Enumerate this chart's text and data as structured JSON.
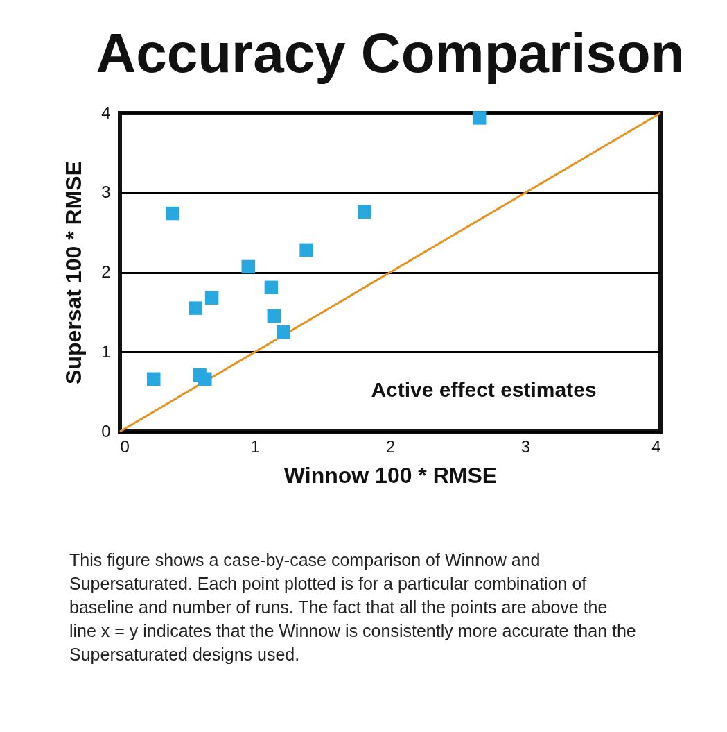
{
  "chart_data": {
    "type": "scatter",
    "title": "Accuracy Comparison",
    "xlabel": "Winnow 100 * RMSE",
    "ylabel": "Supersat 100 * RMSE",
    "annotations": [
      "Active effect estimates",
      "This figure shows a case-by-case comparison of Winnow and Supersaturated. Each point plotted is for a particular combination of baseline and number of runs. The fact that all the points are above the line x = y indicates that the Winnow is consistently more accurate than the Supersaturated designs used."
    ],
    "series": [
      {
        "color": "#29a8e0",
        "marker": "square",
        "x": [
          0.25,
          0.39,
          0.56,
          0.59,
          0.63,
          0.68,
          0.95,
          1.12,
          1.14,
          1.21,
          1.38,
          1.81,
          2.66
        ],
        "values": [
          0.66,
          2.74,
          1.55,
          0.71,
          0.66,
          1.68,
          2.07,
          1.81,
          1.45,
          1.25,
          2.28,
          2.76,
          3.94
        ]
      },
      {
        "type": "line",
        "color": "#e8921e",
        "x": [
          0,
          4
        ],
        "values": [
          0,
          4
        ]
      }
    ],
    "line_style": "solid",
    "xlim": [
      0,
      4
    ],
    "xticks": [
      0,
      1,
      2,
      3,
      4
    ],
    "ylim": [
      0,
      4
    ],
    "yticks": [
      0,
      1,
      2,
      3,
      4
    ],
    "grid": "y"
  }
}
